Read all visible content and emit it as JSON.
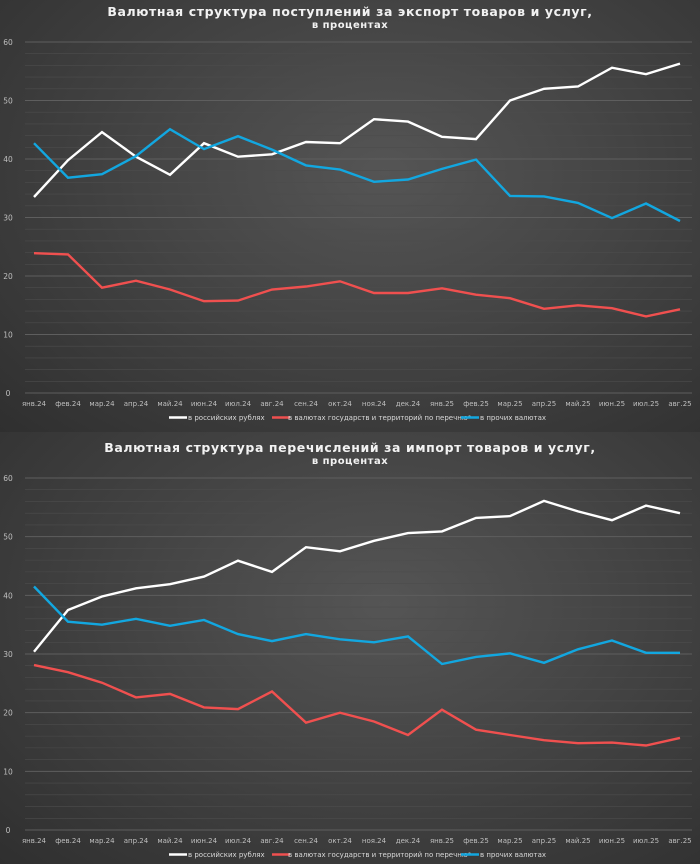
{
  "chart_data": [
    {
      "type": "line",
      "title": "Валютная структура поступлений за экспорт товаров и услуг,",
      "subtitle": "в процентах",
      "xlabel": "",
      "ylabel": "",
      "ylim": [
        0,
        60
      ],
      "yticks": [
        "0",
        "10",
        "20",
        "30",
        "40",
        "50",
        "60"
      ],
      "grid": true,
      "legend_position": "bottom",
      "categories": [
        "янв.24",
        "фев.24",
        "мар.24",
        "апр.24",
        "май.24",
        "июн.24",
        "июл.24",
        "авг.24",
        "сен.24",
        "окт.24",
        "ноя.24",
        "дек.24",
        "янв.25",
        "фев.25",
        "мар.25",
        "апр.25",
        "май.25",
        "июн.25",
        "июл.25",
        "авг.25"
      ],
      "series": [
        {
          "name": "в российских рублях",
          "color": "#ffffff",
          "values": [
            33.5,
            39.8,
            44.6,
            40.4,
            37.3,
            42.7,
            40.4,
            40.8,
            42.9,
            42.7,
            46.8,
            46.4,
            43.8,
            43.4,
            50.0,
            52.0,
            52.4,
            55.6,
            54.5,
            56.3
          ]
        },
        {
          "name": "в валютах государств и территорий по перечню*",
          "color": "#f0504f",
          "values": [
            23.9,
            23.7,
            18.0,
            19.2,
            17.7,
            15.7,
            15.8,
            17.7,
            18.2,
            19.1,
            17.1,
            17.1,
            17.9,
            16.8,
            16.2,
            14.4,
            15.0,
            14.5,
            13.1,
            14.3
          ]
        },
        {
          "name": "в прочих валютах",
          "color": "#12a7e0",
          "values": [
            42.7,
            36.8,
            37.4,
            40.5,
            45.1,
            41.7,
            43.9,
            41.6,
            38.9,
            38.2,
            36.1,
            36.5,
            38.3,
            39.9,
            33.7,
            33.6,
            32.5,
            29.9,
            32.4,
            29.4
          ]
        }
      ]
    },
    {
      "type": "line",
      "title": "Валютная структура перечислений за импорт товаров и услуг,",
      "subtitle": "в процентах",
      "xlabel": "",
      "ylabel": "",
      "ylim": [
        0,
        60
      ],
      "yticks": [
        "0",
        "10",
        "20",
        "30",
        "40",
        "50",
        "60"
      ],
      "grid": true,
      "legend_position": "bottom",
      "categories": [
        "янв.24",
        "фев.24",
        "мар.24",
        "апр.24",
        "май.24",
        "июн.24",
        "июл.24",
        "авг.24",
        "сен.24",
        "окт.24",
        "ноя.24",
        "дек.24",
        "янв.25",
        "фев.25",
        "мар.25",
        "апр.25",
        "май.25",
        "июн.25",
        "июл.25",
        "авг.25"
      ],
      "series": [
        {
          "name": "в российских рублях",
          "color": "#ffffff",
          "values": [
            30.4,
            37.5,
            39.8,
            41.2,
            41.9,
            43.2,
            45.9,
            44.0,
            48.2,
            47.5,
            49.3,
            50.6,
            50.9,
            53.2,
            53.5,
            56.1,
            54.3,
            52.8,
            55.3,
            54.0
          ]
        },
        {
          "name": "в валютах государств и территорий по перечню*",
          "color": "#f0504f",
          "values": [
            28.1,
            26.9,
            25.1,
            22.6,
            23.2,
            20.9,
            20.6,
            23.6,
            18.3,
            20.0,
            18.5,
            16.2,
            20.5,
            17.1,
            16.2,
            15.3,
            14.8,
            14.9,
            14.4,
            15.7
          ]
        },
        {
          "name": "в прочих валютах",
          "color": "#12a7e0",
          "values": [
            41.5,
            35.5,
            35.0,
            36.0,
            34.8,
            35.8,
            33.4,
            32.2,
            33.4,
            32.5,
            32.0,
            33.0,
            28.3,
            29.5,
            30.1,
            28.5,
            30.8,
            32.3,
            30.2,
            30.2
          ]
        }
      ]
    }
  ]
}
